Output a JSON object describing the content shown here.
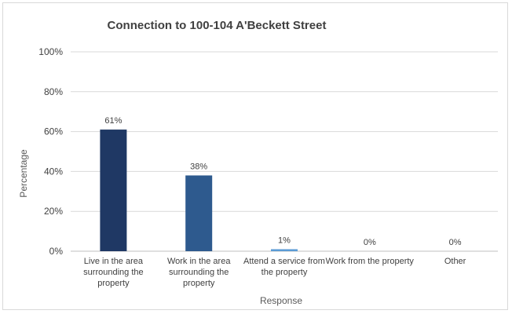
{
  "chart_data": {
    "type": "bar",
    "title": "Connection to 100-104 A'Beckett Street",
    "xlabel": "Response",
    "ylabel": "Percentage",
    "ylim": [
      0,
      100
    ],
    "yticks": [
      "0%",
      "20%",
      "40%",
      "60%",
      "80%",
      "100%"
    ],
    "grid": true,
    "categories": [
      [
        "Live in the area",
        "surrounding the",
        "property"
      ],
      [
        "Work in the area",
        "surrounding the",
        "property"
      ],
      [
        "Attend a service from",
        "the property"
      ],
      [
        "Work from the property"
      ],
      [
        "Other"
      ]
    ],
    "values": [
      61,
      38,
      1,
      0,
      0
    ],
    "data_labels": [
      "61%",
      "38%",
      "1%",
      "0%",
      "0%"
    ],
    "colors": [
      "#1f3864",
      "#2e5a8e",
      "#5b9bd5",
      "#5b9bd5",
      "#5b9bd5"
    ]
  }
}
